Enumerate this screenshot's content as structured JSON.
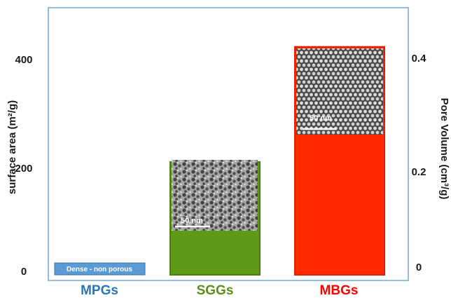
{
  "chart_data": {
    "type": "bar",
    "categories": [
      "MPGs",
      "SGGs",
      "MBGs"
    ],
    "category_colors": [
      "#2e75b6",
      "#5a8f1c",
      "#ff0000"
    ],
    "bar_colors": [
      "#5b9bd5",
      "#5e9a15",
      "#ff2a00"
    ],
    "bar_border_colors": [
      "#3a6fa8",
      "#4c7d12",
      "#e02000"
    ],
    "values": [
      0,
      212,
      428
    ],
    "xlabel": "",
    "ylabel": "surface area  (m²/g)",
    "ylim": [
      0,
      500
    ],
    "yticks": [
      0,
      200,
      400
    ],
    "y2label": "Pore  Volume (cm³/g)",
    "y2ticks": [
      0,
      0.2,
      0.4
    ],
    "bar_annotations": [
      "Dense - non porous",
      "",
      ""
    ],
    "inset_images": [
      {
        "category": "SGGs",
        "description": "TEM micrograph, disordered pores",
        "scale_label": "50 nm"
      },
      {
        "category": "MBGs",
        "description": "TEM micrograph, ordered hexagonal pores",
        "scale_label": "50 nm"
      }
    ],
    "grid": false,
    "legend": "none",
    "frame_color": "#5b9bd5"
  }
}
